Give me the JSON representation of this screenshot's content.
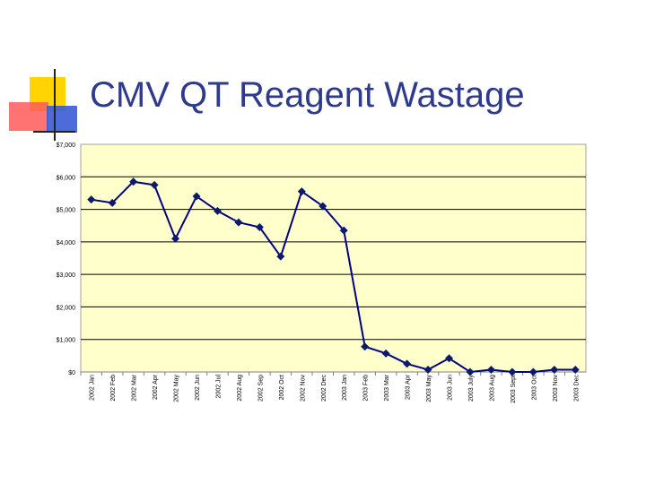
{
  "slide": {
    "title": "CMV QT Reagent Wastage"
  },
  "colors": {
    "plot_bg": "#ffffcc",
    "line": "#000080",
    "marker": "#0a1a6e",
    "title": "#2e3a8c"
  },
  "chart_data": {
    "type": "line",
    "title": "CMV QT Reagent Wastage",
    "xlabel": "",
    "ylabel": "",
    "ylim": [
      0,
      7000
    ],
    "yticks": [
      0,
      1000,
      2000,
      3000,
      4000,
      5000,
      6000,
      7000
    ],
    "ytick_labels": [
      "$0",
      "$1,000",
      "$2,000",
      "$3,000",
      "$4,000",
      "$5,000",
      "$6,000",
      "$7,000"
    ],
    "grid": true,
    "legend": "none",
    "categories": [
      "2002 Jan",
      "2002 Feb",
      "2002 Mar",
      "2002 Apr",
      "2002 May",
      "2002 Jun",
      "2002 Jul",
      "2002 Aug",
      "2002 Sep",
      "2002 Oct",
      "2002 Nov",
      "2002 Dec",
      "2003 Jan",
      "2003 Feb",
      "2003 Mar",
      "2003 Apr",
      "2003 May",
      "2003 Jun",
      "2003 July",
      "2003 Aug",
      "2003 Sept",
      "2003 Oct",
      "2003 Nov",
      "2003 Dec"
    ],
    "series": [
      {
        "values": [
          5300,
          5200,
          5850,
          5750,
          4100,
          5400,
          4950,
          4600,
          4450,
          3550,
          5550,
          5100,
          4350,
          780,
          570,
          250,
          70,
          420,
          0,
          70,
          0,
          -10,
          70,
          70
        ]
      }
    ]
  }
}
